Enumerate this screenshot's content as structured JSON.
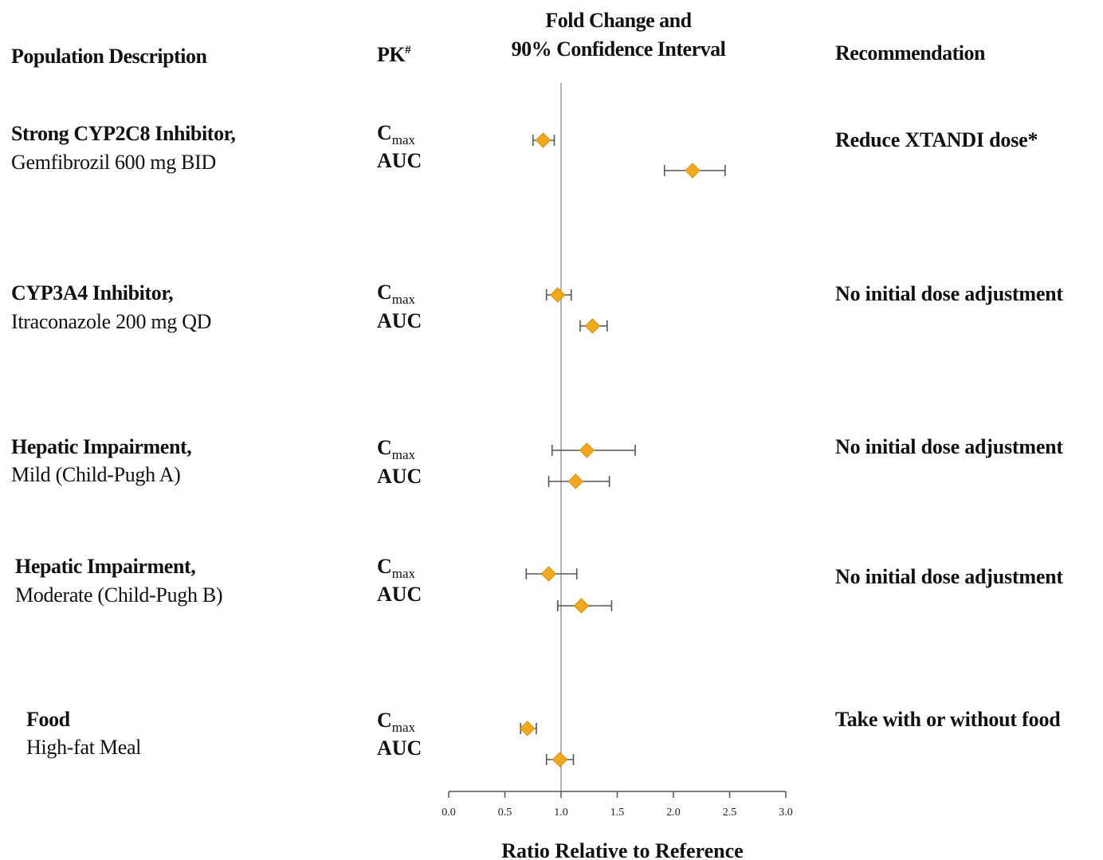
{
  "headers": {
    "population": "Population Description",
    "pk": "PK",
    "pk_superscript": "#",
    "chart_title_line1": "Fold Change and",
    "chart_title_line2": "90% Confidence Interval",
    "recommendation": "Recommendation"
  },
  "rows": [
    {
      "population_bold": "Strong CYP2C8 Inhibitor,",
      "population_regular": "Gemfibrozil 600 mg BID",
      "pk1": "C",
      "pk1_sub": "max",
      "pk2": "AUC",
      "recommendation": "Reduce XTANDI dose*"
    },
    {
      "population_bold": "CYP3A4 Inhibitor,",
      "population_regular": "Itraconazole 200 mg QD",
      "pk1": "C",
      "pk1_sub": "max",
      "pk2": "AUC",
      "recommendation": "No initial dose adjustment"
    },
    {
      "population_bold": "Hepatic Impairment,",
      "population_regular": "Mild (Child-Pugh A)",
      "pk1": "C",
      "pk1_sub": "max",
      "pk2": "AUC",
      "recommendation": "No initial dose adjustment"
    },
    {
      "population_bold": "Hepatic Impairment,",
      "population_regular": "Moderate (Child-Pugh B)",
      "pk1": "C",
      "pk1_sub": "max",
      "pk2": "AUC",
      "recommendation": "No initial dose adjustment"
    },
    {
      "population_bold": "Food",
      "population_regular": "High-fat Meal",
      "pk1": "C",
      "pk1_sub": "max",
      "pk2": "AUC",
      "recommendation": "Take with or without food"
    }
  ],
  "chart_data": {
    "type": "forest",
    "title": "Fold Change and 90% Confidence Interval",
    "xlabel": "Ratio Relative to Reference",
    "xlim": [
      0.0,
      3.0
    ],
    "xticks": [
      "0.0",
      "0.5",
      "1.0",
      "1.5",
      "2.0",
      "2.5",
      "3.0"
    ],
    "reference_line": 1.0,
    "marker_color": "#f2a81d",
    "errorbar_color": "#555555",
    "points": [
      {
        "group": "Strong CYP2C8 Inhibitor",
        "metric": "Cmax",
        "value": 0.84,
        "ci": [
          0.75,
          0.94
        ]
      },
      {
        "group": "Strong CYP2C8 Inhibitor",
        "metric": "AUC",
        "value": 2.17,
        "ci": [
          1.92,
          2.46
        ]
      },
      {
        "group": "CYP3A4 Inhibitor",
        "metric": "Cmax",
        "value": 0.97,
        "ci": [
          0.87,
          1.09
        ]
      },
      {
        "group": "CYP3A4 Inhibitor",
        "metric": "AUC",
        "value": 1.28,
        "ci": [
          1.17,
          1.41
        ]
      },
      {
        "group": "Hepatic Impairment Mild",
        "metric": "Cmax",
        "value": 1.23,
        "ci": [
          0.92,
          1.66
        ]
      },
      {
        "group": "Hepatic Impairment Mild",
        "metric": "AUC",
        "value": 1.13,
        "ci": [
          0.89,
          1.43
        ]
      },
      {
        "group": "Hepatic Impairment Moderate",
        "metric": "Cmax",
        "value": 0.89,
        "ci": [
          0.69,
          1.14
        ]
      },
      {
        "group": "Hepatic Impairment Moderate",
        "metric": "AUC",
        "value": 1.18,
        "ci": [
          0.97,
          1.45
        ]
      },
      {
        "group": "Food High-fat Meal",
        "metric": "Cmax",
        "value": 0.7,
        "ci": [
          0.64,
          0.78
        ]
      },
      {
        "group": "Food High-fat Meal",
        "metric": "AUC",
        "value": 0.99,
        "ci": [
          0.87,
          1.11
        ]
      }
    ]
  }
}
